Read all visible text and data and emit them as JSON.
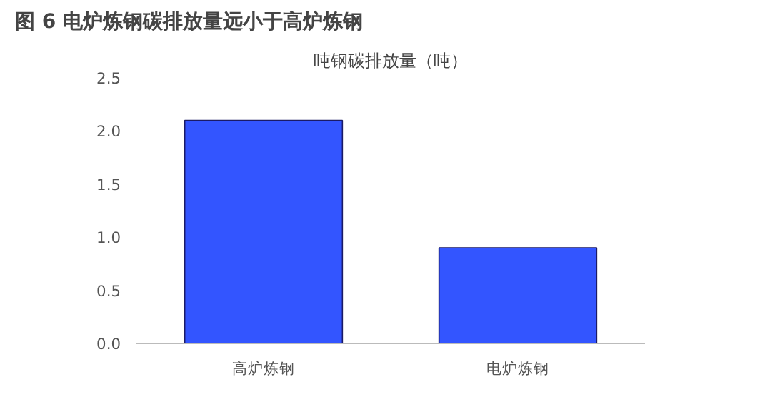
{
  "chart_data": {
    "type": "bar",
    "title": "图 6  电炉炼钢碳排放量远小于高炉炼钢",
    "subtitle": "吨钢碳排放量（吨）",
    "categories": [
      "高炉炼钢",
      "电炉炼钢"
    ],
    "values": [
      2.1,
      0.9
    ],
    "color": "#3355ff",
    "ylim": [
      0,
      2.5
    ],
    "yticks": [
      {
        "value": 0,
        "label": "0.0"
      },
      {
        "value": 0.5,
        "label": "0.5"
      },
      {
        "value": 1.0,
        "label": "1.0"
      },
      {
        "value": 1.5,
        "label": "1.5"
      },
      {
        "value": 2.0,
        "label": "2.0"
      },
      {
        "value": 2.5,
        "label": "2.5"
      }
    ],
    "grid": false
  }
}
